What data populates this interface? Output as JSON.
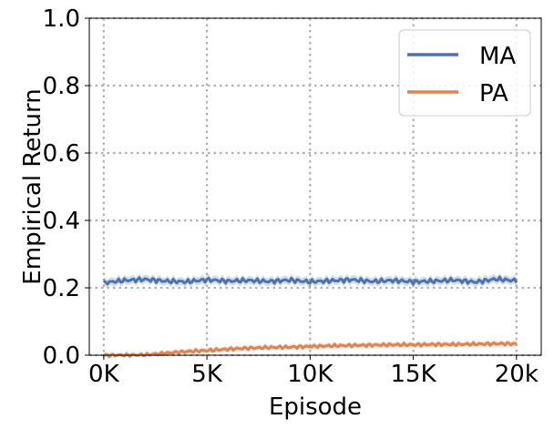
{
  "chart_data": {
    "type": "line",
    "xlabel": "Episode",
    "ylabel": "Empirical Return",
    "xlim": [
      -700,
      21200
    ],
    "ylim": [
      0,
      1.0
    ],
    "x_ticks": [
      {
        "value": 0,
        "label": "0K"
      },
      {
        "value": 5000,
        "label": "5K"
      },
      {
        "value": 10000,
        "label": "10K"
      },
      {
        "value": 15000,
        "label": "15K"
      },
      {
        "value": 20000,
        "label": "20k"
      }
    ],
    "y_ticks": [
      {
        "value": 0.0,
        "label": "0.0"
      },
      {
        "value": 0.2,
        "label": "0.2"
      },
      {
        "value": 0.4,
        "label": "0.4"
      },
      {
        "value": 0.6,
        "label": "0.6"
      },
      {
        "value": 0.8,
        "label": "0.8"
      },
      {
        "value": 1.0,
        "label": "1.0"
      }
    ],
    "grid": true,
    "legend_position": "top-right",
    "series": [
      {
        "name": "MA",
        "color": "#4c72b0",
        "x": [
          0,
          1000,
          2000,
          3000,
          4000,
          5000,
          6000,
          7000,
          8000,
          9000,
          10000,
          11000,
          12000,
          13000,
          14000,
          15000,
          16000,
          17000,
          18000,
          19000,
          20000
        ],
        "y": [
          0.215,
          0.222,
          0.225,
          0.22,
          0.218,
          0.224,
          0.22,
          0.222,
          0.219,
          0.223,
          0.218,
          0.221,
          0.224,
          0.219,
          0.222,
          0.218,
          0.22,
          0.223,
          0.217,
          0.226,
          0.221
        ],
        "band": 0.012
      },
      {
        "name": "PA",
        "color": "#dd8452",
        "x": [
          0,
          1000,
          2000,
          3000,
          4000,
          5000,
          6000,
          7000,
          8000,
          9000,
          10000,
          11000,
          12000,
          13000,
          14000,
          15000,
          16000,
          17000,
          18000,
          19000,
          20000
        ],
        "y": [
          0.0,
          0.0,
          0.001,
          0.006,
          0.011,
          0.014,
          0.018,
          0.021,
          0.023,
          0.024,
          0.026,
          0.028,
          0.029,
          0.03,
          0.031,
          0.031,
          0.032,
          0.032,
          0.033,
          0.034,
          0.034
        ],
        "band": 0.008
      }
    ]
  }
}
